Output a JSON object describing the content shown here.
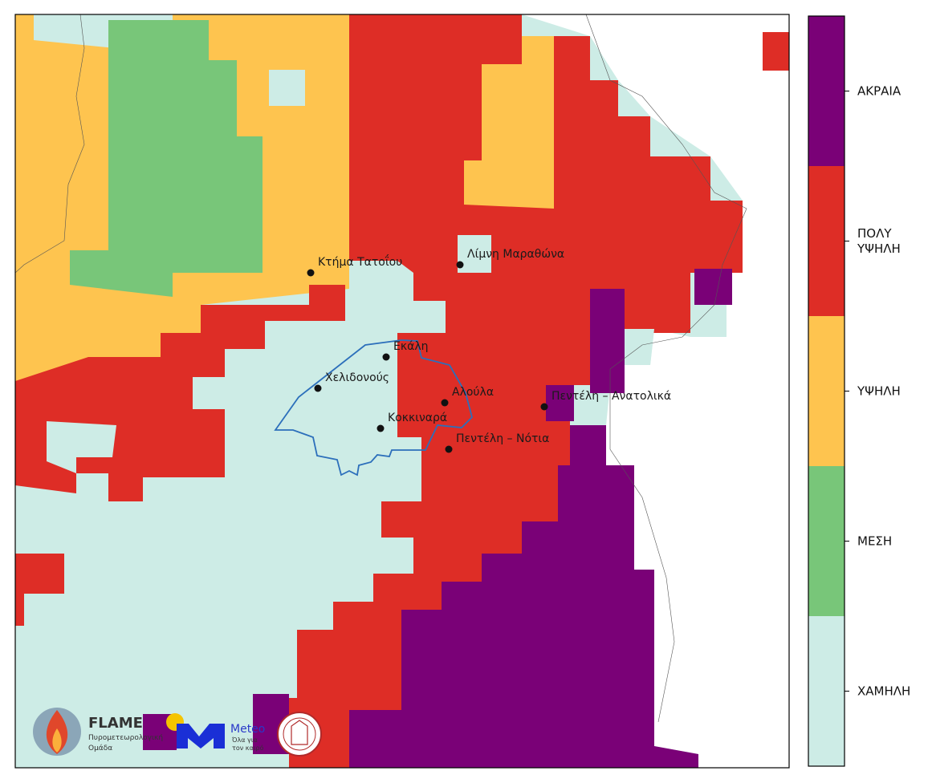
{
  "map": {
    "places": [
      {
        "label": "Κτήμα Τατοΐου"
      },
      {
        "label": "Λίμνη Μαραθώνα"
      },
      {
        "label": "Εκάλη"
      },
      {
        "label": "Χελιδονούς"
      },
      {
        "label": "Αλούλα"
      },
      {
        "label": "Κοκκιναρά"
      },
      {
        "label": "Πεντέλη – Ανατολικά"
      },
      {
        "label": "Πεντέλη – Νότια"
      }
    ]
  },
  "legend": {
    "levels": [
      {
        "label": "ΑΚΡΑΙΑ",
        "color": "#7a0177"
      },
      {
        "label": "ΠΟΛΥ\nΥΨΗΛΗ",
        "color": "#de2d26"
      },
      {
        "label": "ΥΨΗΛΗ",
        "color": "#fec44f"
      },
      {
        "label": "ΜΕΣΗ",
        "color": "#78c679"
      },
      {
        "label": "ΧΑΜΗΛΗ",
        "color": "#cdece6"
      }
    ]
  },
  "logos": {
    "flame": {
      "name": "FLAME",
      "subtitle_line1": "Πυρομετεωρολογική",
      "subtitle_line2": "Ομάδα"
    },
    "meteo": {
      "name": "Meteo",
      "subtitle_line1": "Όλα για",
      "subtitle_line2": "τον καιρό"
    }
  }
}
